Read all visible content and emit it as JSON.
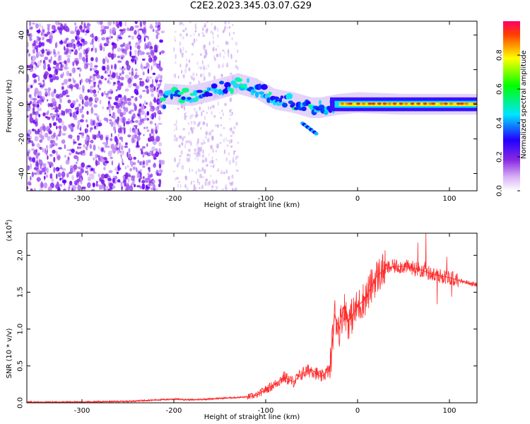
{
  "figure": {
    "title": "C2E2.2023.345.03.07.G29"
  },
  "chart_data": [
    {
      "type": "heatmap",
      "xlabel": "Height of straight line (km)",
      "ylabel": "Frequency (Hz)",
      "xlim": [
        -360,
        130
      ],
      "ylim": [
        -50,
        48
      ],
      "x_ticks": [
        -300,
        -200,
        -100,
        0,
        100
      ],
      "y_ticks": [
        -40,
        -20,
        0,
        20,
        40
      ],
      "colorbar": {
        "label": "Normalized spectral amplitude",
        "range": [
          0,
          1
        ],
        "ticks": [
          "0.0",
          "0.2",
          "0.4",
          "0.6",
          "0.8"
        ],
        "colors": [
          "#ffffff",
          "#d9b3f5",
          "#8a2be2",
          "#2200ff",
          "#00e5ff",
          "#00ff00",
          "#ffff00",
          "#ff0000"
        ]
      },
      "features": {
        "noise_region_x": [
          -360,
          -212
        ],
        "sparse_streaks_x": [
          -200,
          -130
        ],
        "signal_trace": [
          {
            "x": -210,
            "y": 6
          },
          {
            "x": -180,
            "y": 5
          },
          {
            "x": -150,
            "y": 9
          },
          {
            "x": -130,
            "y": 12
          },
          {
            "x": -110,
            "y": 9
          },
          {
            "x": -90,
            "y": 3
          },
          {
            "x": -70,
            "y": 1
          },
          {
            "x": -50,
            "y": -2
          },
          {
            "x": -40,
            "y": -2
          },
          {
            "x": -20,
            "y": 0
          },
          {
            "x": 0,
            "y": 1
          },
          {
            "x": 50,
            "y": 0
          },
          {
            "x": 100,
            "y": 0
          },
          {
            "x": 130,
            "y": 0
          }
        ],
        "split_branch": [
          {
            "x": -60,
            "y": -11
          },
          {
            "x": -45,
            "y": -17
          }
        ]
      }
    },
    {
      "type": "line",
      "xlabel": "Height of straight line (km)",
      "ylabel": "SNR (10 * v/v)",
      "y_scale_label": "(x10",
      "y_scale_exp": "4",
      "xlim": [
        -360,
        130
      ],
      "ylim": [
        0,
        2.3
      ],
      "x_ticks": [
        -300,
        -200,
        -100,
        0,
        100
      ],
      "y_ticks": [
        "0.0",
        "0.5",
        "1.0",
        "1.5",
        "2.0"
      ],
      "line_color": "#ff2a2a",
      "series": [
        {
          "x": [
            -360,
            -300,
            -250,
            -200,
            -180,
            -150,
            -120,
            -110,
            -100,
            -90,
            -80,
            -70,
            -60,
            -50,
            -40,
            -30,
            -25,
            -20,
            -15,
            -10,
            0,
            10,
            20,
            30,
            40,
            50,
            60,
            70,
            80,
            90,
            100,
            110,
            120,
            130
          ],
          "values": [
            0.01,
            0.01,
            0.02,
            0.05,
            0.04,
            0.06,
            0.08,
            0.1,
            0.18,
            0.25,
            0.35,
            0.28,
            0.4,
            0.45,
            0.35,
            0.45,
            1.2,
            1.0,
            1.3,
            1.1,
            1.3,
            1.45,
            1.7,
            1.82,
            1.85,
            1.85,
            1.83,
            1.8,
            1.75,
            1.72,
            1.7,
            1.66,
            1.63,
            1.6
          ]
        }
      ]
    }
  ]
}
